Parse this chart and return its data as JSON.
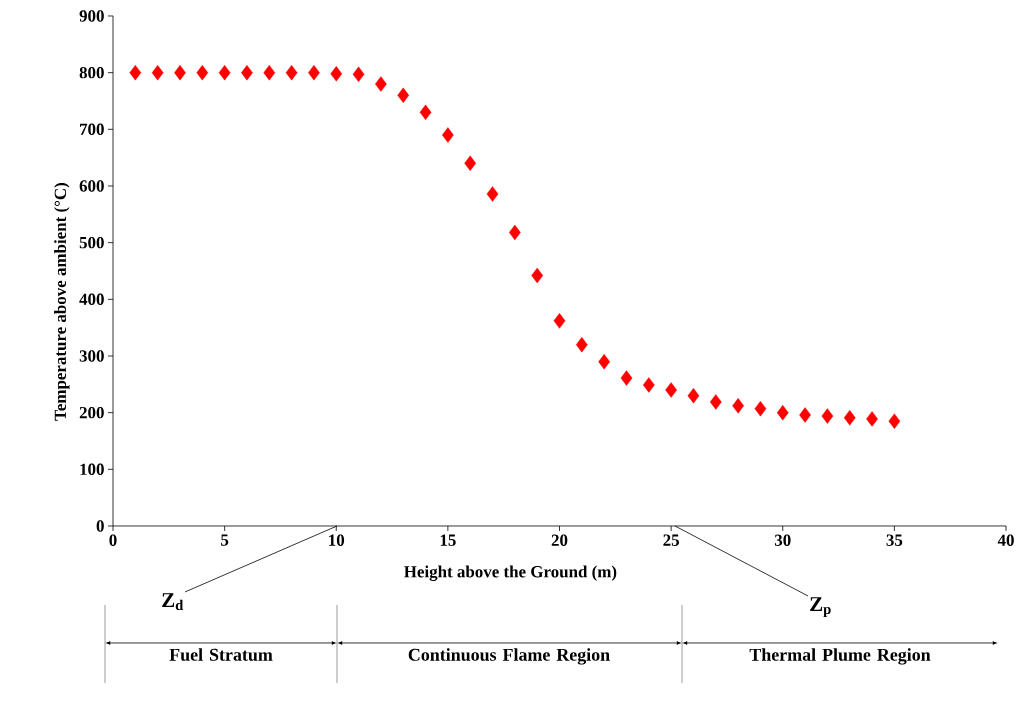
{
  "chart_data": {
    "type": "scatter",
    "xlabel": "Height above the Ground (m)",
    "ylabel": "Temperature above ambient (°C)",
    "x": [
      1,
      2,
      3,
      4,
      5,
      6,
      7,
      8,
      9,
      10,
      11,
      12,
      13,
      14,
      15,
      16,
      17,
      18,
      19,
      20,
      21,
      22,
      23,
      24,
      25,
      26,
      27,
      28,
      29,
      30,
      31,
      32,
      33,
      34,
      35
    ],
    "values": [
      800,
      800,
      800,
      800,
      800,
      800,
      800,
      800,
      800,
      798,
      797,
      780,
      760,
      730,
      690,
      640,
      586,
      518,
      442,
      362,
      320,
      290,
      261,
      249,
      240,
      230,
      219,
      212,
      207,
      200,
      196,
      194,
      191,
      189,
      185
    ],
    "color": "#ff0000",
    "marker": "diamond",
    "xlim": [
      0,
      40
    ],
    "xticks": [
      0,
      5,
      10,
      15,
      20,
      25,
      30,
      35,
      40
    ],
    "ylim": [
      0,
      900
    ],
    "yticks": [
      0,
      100,
      200,
      300,
      400,
      500,
      600,
      700,
      800,
      900
    ],
    "annotations": [
      "Z$_{d}$",
      "Z$_{p}$",
      "Fuel Stratum",
      "Continuous Flame Region",
      "Thermal Plume Region"
    ]
  }
}
